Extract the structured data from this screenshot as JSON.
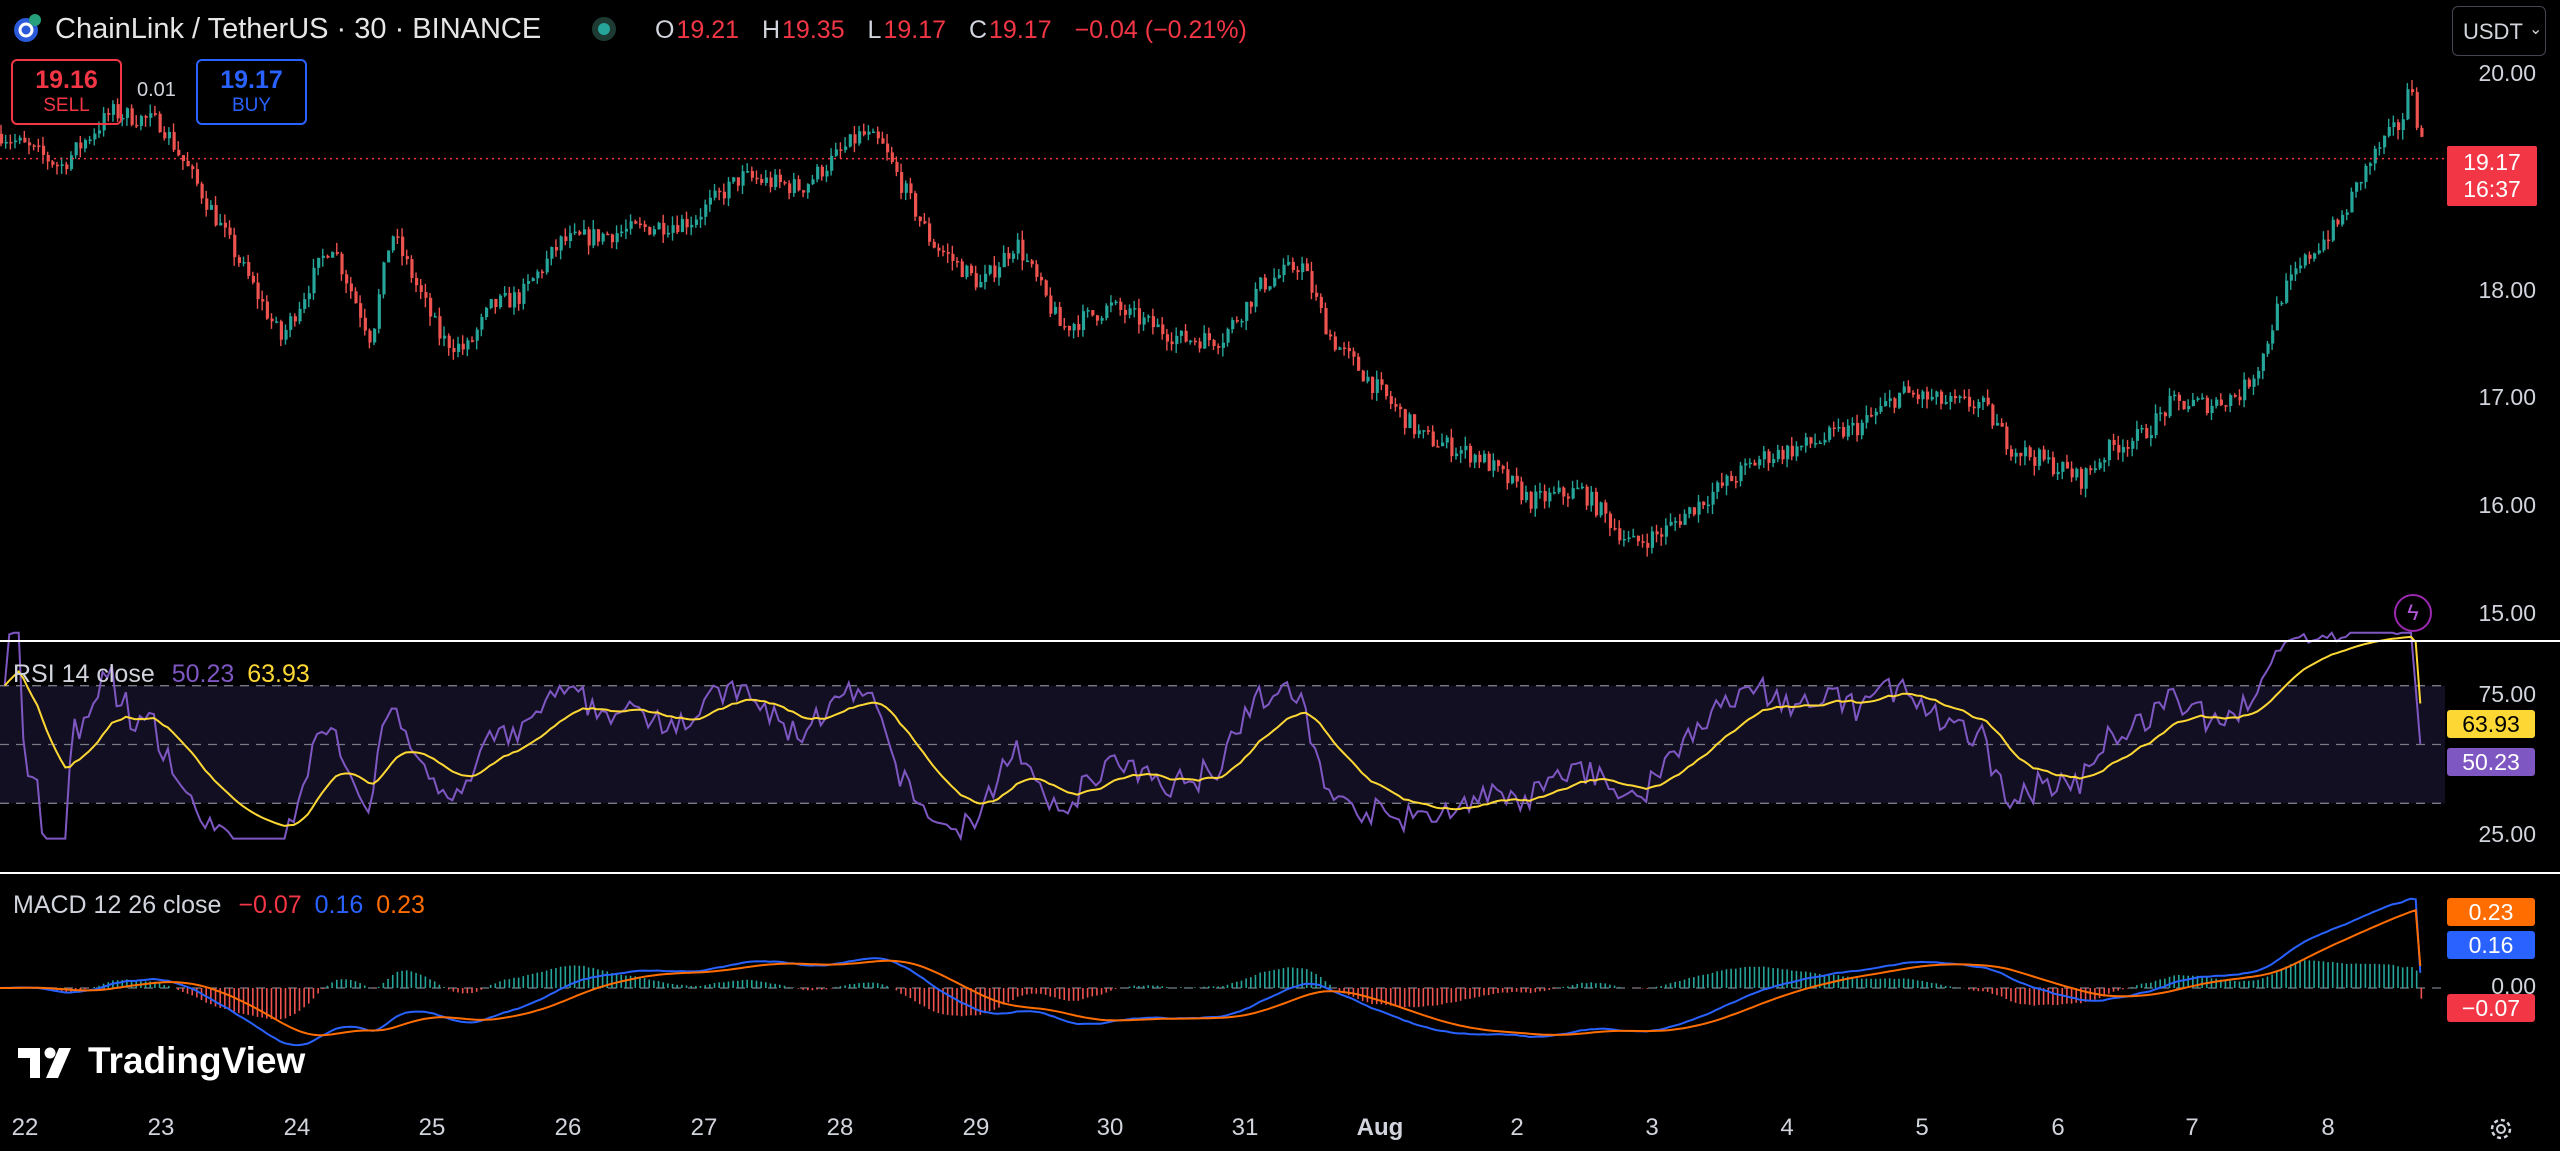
{
  "header": {
    "symbol_title": "ChainLink / TetherUS · 30 · BINANCE",
    "ohlc": [
      {
        "label": "O",
        "value": "19.21"
      },
      {
        "label": "H",
        "value": "19.35"
      },
      {
        "label": "L",
        "value": "19.17"
      },
      {
        "label": "C",
        "value": "19.17"
      }
    ],
    "change": "−0.04 (−0.21%)",
    "currency": "USDT"
  },
  "trade": {
    "sell_price": "19.16",
    "sell_label": "SELL",
    "spread": "0.01",
    "buy_price": "19.17",
    "buy_label": "BUY"
  },
  "price_axis": {
    "ticks": [
      "20.00",
      "18.00",
      "17.00",
      "16.00",
      "15.00"
    ],
    "last_price": "19.17",
    "countdown": "16:37"
  },
  "rsi": {
    "title": "RSI 14 close",
    "value": "50.23",
    "ma_value": "63.93",
    "ticks": [
      "75.00",
      "25.00"
    ],
    "upper": 70,
    "lower": 30
  },
  "macd": {
    "title": "MACD 12 26 close",
    "hist_value": "−0.07",
    "macd_value": "0.16",
    "signal_value": "0.23",
    "zero_label": "0.00"
  },
  "time_axis": {
    "labels": [
      "22",
      "23",
      "24",
      "25",
      "26",
      "27",
      "28",
      "29",
      "30",
      "31",
      "Aug",
      "2",
      "3",
      "4",
      "5",
      "6",
      "7",
      "8"
    ]
  },
  "branding": {
    "logo": "TradingView"
  },
  "colors": {
    "up": "#26a69a",
    "down": "#ef5350",
    "sell": "#f23645",
    "buy": "#2962ff",
    "rsi": "#7e57c2",
    "rsi_ma": "#fdd835",
    "macd": "#2962ff",
    "signal": "#ff6d00"
  },
  "chart_data": [
    {
      "type": "candlestick",
      "title": "LINK/USDT 30m",
      "x": [
        "22",
        "23",
        "24",
        "25",
        "26",
        "27",
        "28",
        "29",
        "30",
        "31",
        "Aug 1",
        "2",
        "3",
        "4",
        "5",
        "6",
        "7",
        "8"
      ],
      "close_approx": [
        19.5,
        19.3,
        17.7,
        17.6,
        18.4,
        18.7,
        19.2,
        18.0,
        17.6,
        17.8,
        16.4,
        15.9,
        15.9,
        16.4,
        17.0,
        16.2,
        17.0,
        19.2
      ],
      "ylim": [
        14.9,
        20.2
      ]
    },
    {
      "type": "line",
      "title": "RSI 14 close",
      "series": [
        {
          "name": "RSI",
          "last": 50.23
        },
        {
          "name": "RSI MA",
          "last": 63.93
        }
      ],
      "ylim": [
        0,
        100
      ]
    },
    {
      "type": "line",
      "title": "MACD 12 26 close",
      "series": [
        {
          "name": "MACD",
          "last": 0.16
        },
        {
          "name": "Signal",
          "last": 0.23
        },
        {
          "name": "Histogram",
          "last": -0.07
        }
      ]
    }
  ]
}
